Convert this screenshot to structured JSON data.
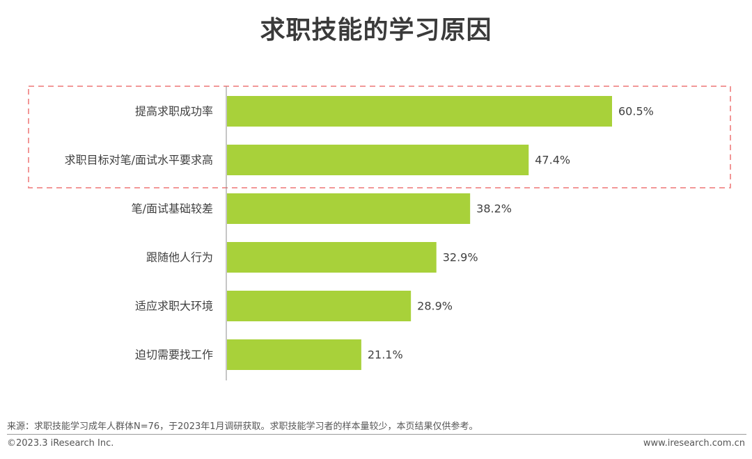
{
  "title": "求职技能的学习原因",
  "chart_data": {
    "type": "bar",
    "orientation": "horizontal",
    "categories": [
      "提高求职成功率",
      "求职目标对笔/面试水平要求高",
      "笔/面试基础较差",
      "跟随他人行为",
      "适应求职大环境",
      "迫切需要找工作"
    ],
    "values": [
      60.5,
      47.4,
      38.2,
      32.9,
      28.9,
      21.1
    ],
    "value_labels": [
      "60.5%",
      "47.4%",
      "38.2%",
      "32.9%",
      "28.9%",
      "21.1%"
    ],
    "unit": "%",
    "bar_color": "#a8d13a",
    "highlight_color": "#f08a8a",
    "highlighted_categories": [
      "提高求职成功率",
      "求职目标对笔/面试水平要求高"
    ],
    "xlim": [
      0,
      60.5
    ],
    "grid": false
  },
  "footer": {
    "source": "来源：求职技能学习成年人群体N=76，于2023年1月调研获取。求职技能学习者的样本量较少，本页结果仅供参考。",
    "copyright": "©2023.3 iResearch Inc.",
    "website": "www.iresearch.com.cn"
  }
}
